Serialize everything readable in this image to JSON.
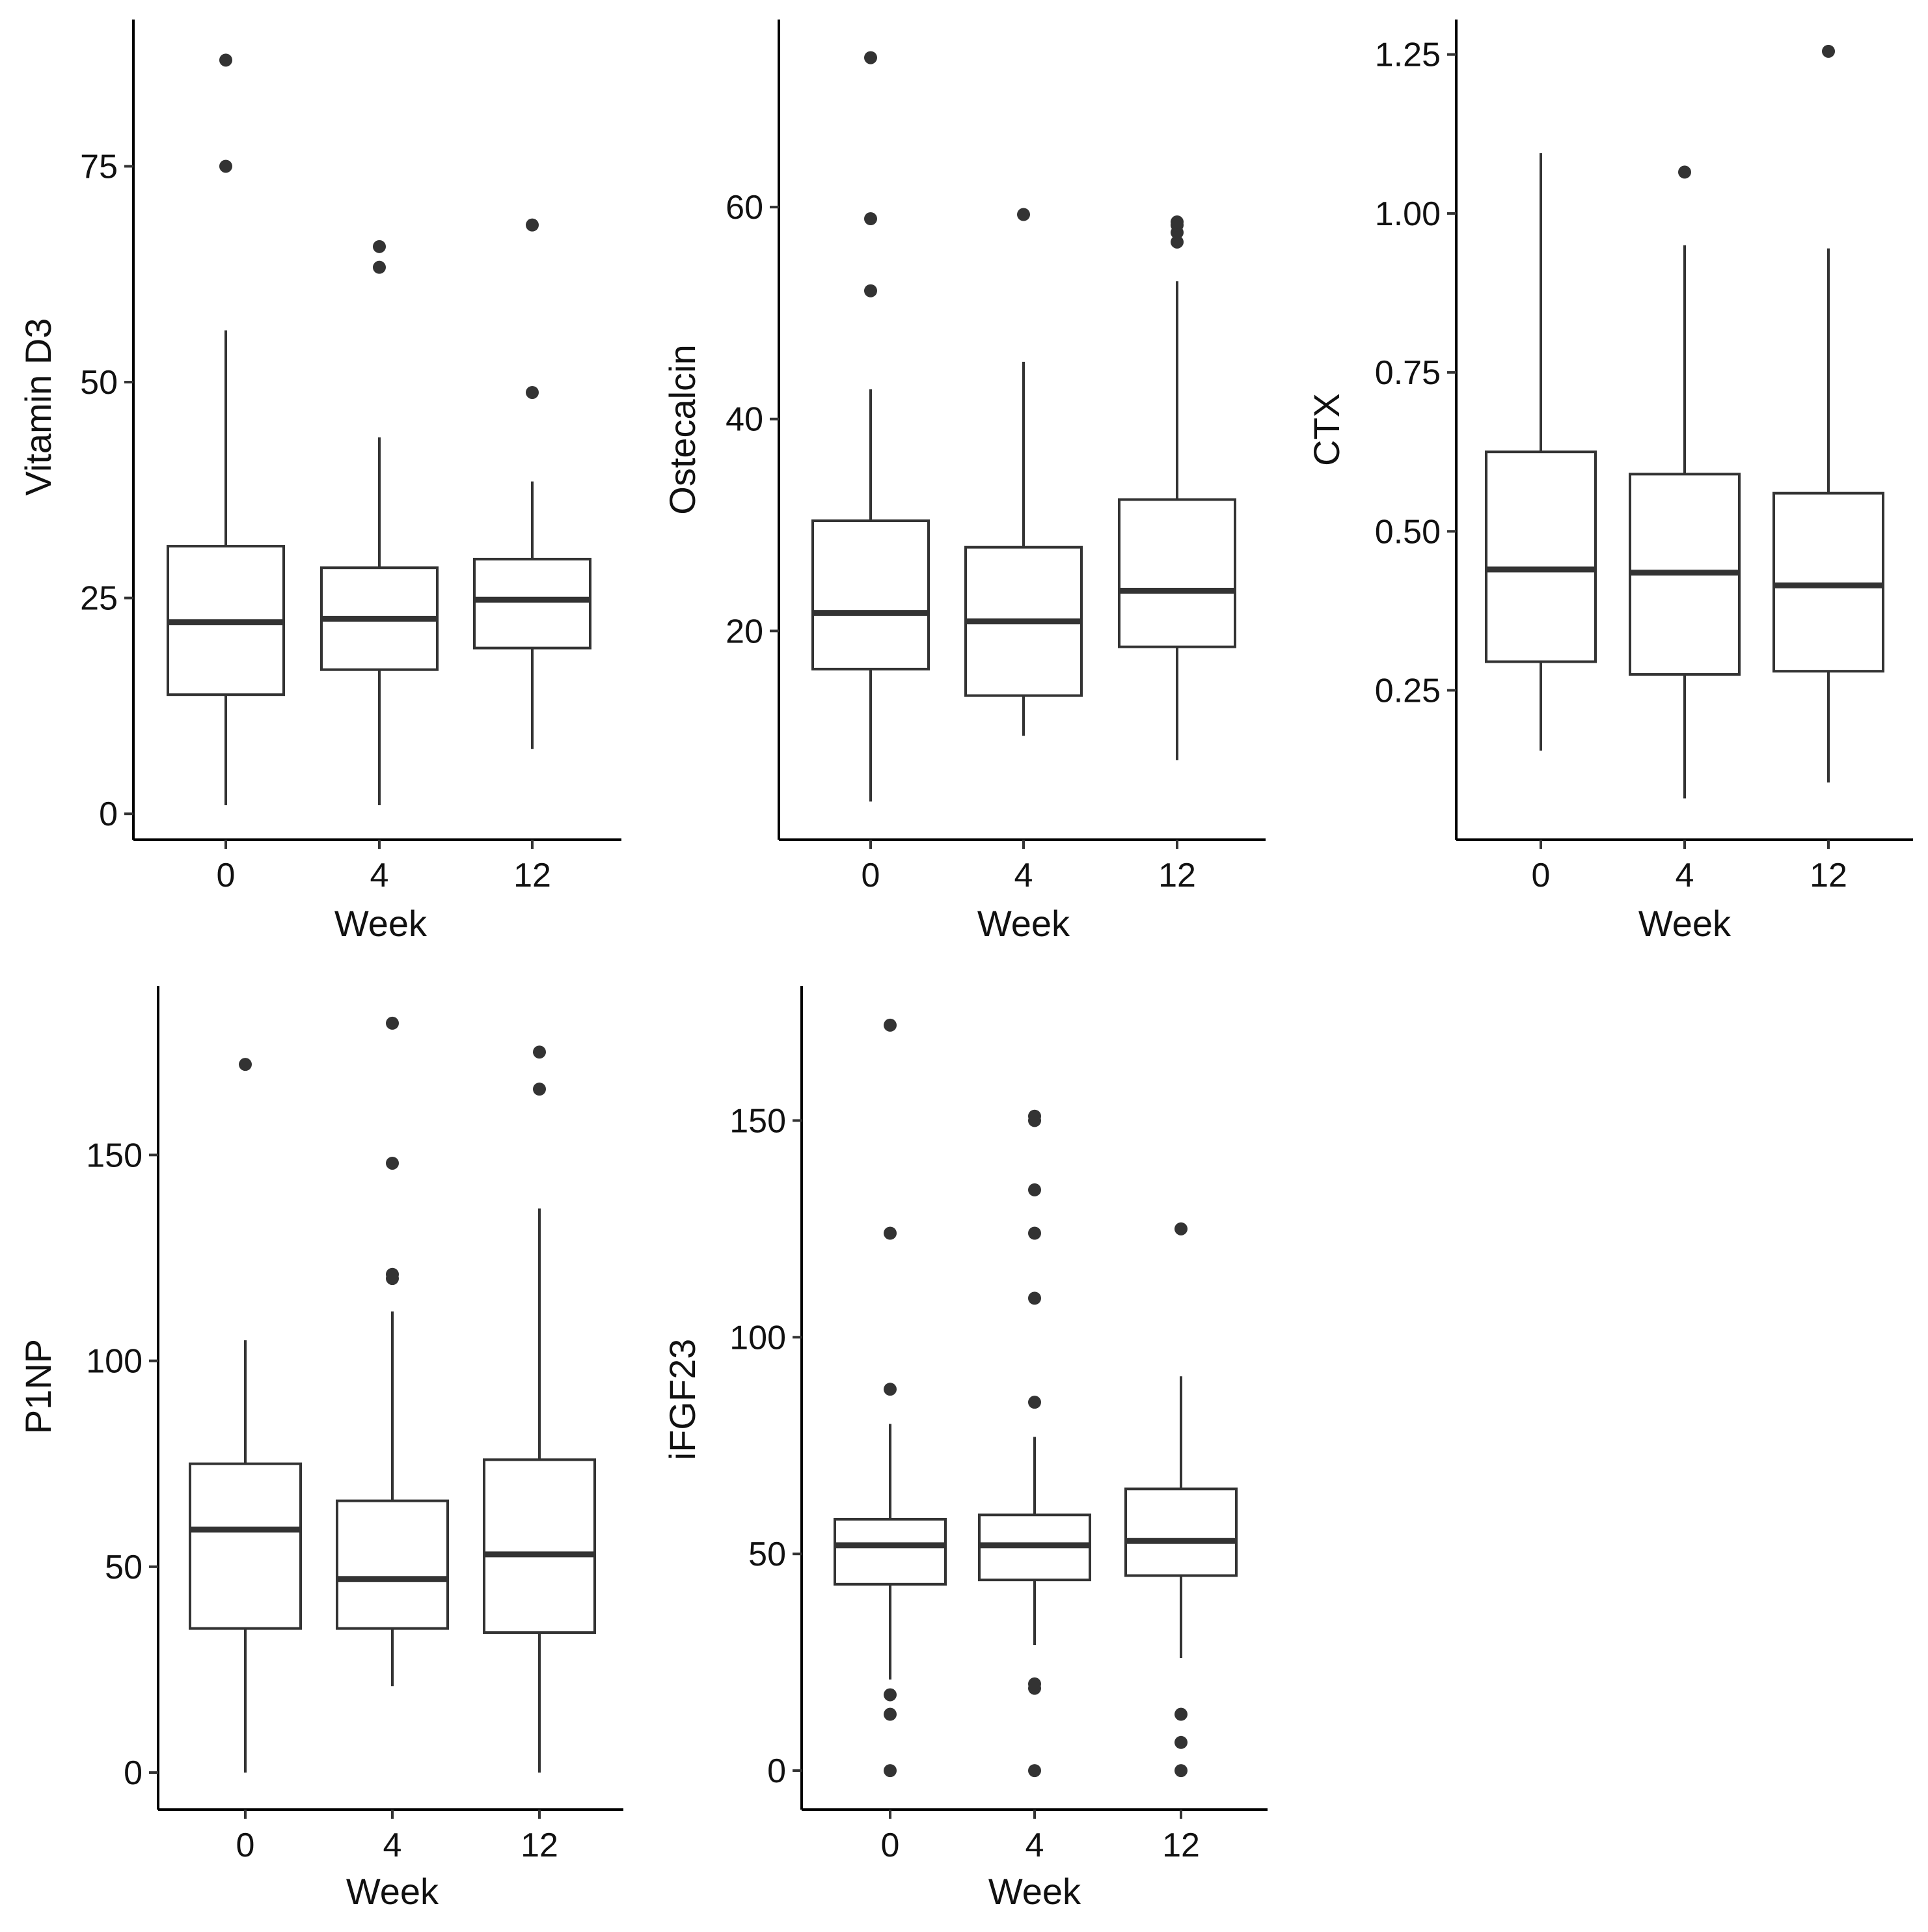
{
  "chart_data": [
    {
      "type": "boxplot",
      "ylabel": "Vitamin D3",
      "xlabel": "Week",
      "categories": [
        "0",
        "4",
        "12"
      ],
      "yticks": [
        "0",
        "25",
        "50",
        "75"
      ],
      "ylim": [
        -3,
        92
      ],
      "boxes": [
        {
          "category": "0",
          "q1": 13.8,
          "median": 22.2,
          "q3": 31.0,
          "whisker_low": 1.0,
          "whisker_high": 56.0,
          "outliers": [
            75.0,
            87.3
          ]
        },
        {
          "category": "4",
          "q1": 16.7,
          "median": 22.6,
          "q3": 28.5,
          "whisker_low": 1.0,
          "whisker_high": 43.6,
          "outliers": [
            63.3,
            65.7
          ]
        },
        {
          "category": "12",
          "q1": 19.2,
          "median": 24.8,
          "q3": 29.5,
          "whisker_low": 7.5,
          "whisker_high": 38.5,
          "outliers": [
            48.8,
            68.2
          ]
        }
      ]
    },
    {
      "type": "boxplot",
      "ylabel": "Ostecalcin",
      "xlabel": "Week",
      "categories": [
        "0",
        "4",
        "12"
      ],
      "yticks": [
        "20",
        "40",
        "60"
      ],
      "ylim": [
        0.3,
        77.7
      ],
      "boxes": [
        {
          "category": "0",
          "q1": 16.4,
          "median": 21.7,
          "q3": 30.4,
          "whisker_low": 3.9,
          "whisker_high": 42.8,
          "outliers": [
            52.1,
            58.9,
            74.1
          ]
        },
        {
          "category": "4",
          "q1": 13.9,
          "median": 20.9,
          "q3": 27.9,
          "whisker_low": 10.1,
          "whisker_high": 45.4,
          "outliers": [
            59.3
          ]
        },
        {
          "category": "12",
          "q1": 18.5,
          "median": 23.8,
          "q3": 32.4,
          "whisker_low": 7.8,
          "whisker_high": 53.0,
          "outliers": [
            56.7,
            57.6,
            58.3,
            58.6
          ]
        }
      ]
    },
    {
      "type": "boxplot",
      "ylabel": "CTX",
      "xlabel": "Week",
      "categories": [
        "0",
        "4",
        "12"
      ],
      "yticks": [
        "0.25",
        "0.50",
        "0.75",
        "1.00",
        "1.25"
      ],
      "ylim": [
        0.015,
        1.305
      ],
      "boxes": [
        {
          "category": "0",
          "q1": 0.295,
          "median": 0.44,
          "q3": 0.625,
          "whisker_low": 0.155,
          "whisker_high": 1.095,
          "outliers": []
        },
        {
          "category": "4",
          "q1": 0.275,
          "median": 0.435,
          "q3": 0.59,
          "whisker_low": 0.08,
          "whisker_high": 0.95,
          "outliers": [
            1.065
          ]
        },
        {
          "category": "12",
          "q1": 0.28,
          "median": 0.415,
          "q3": 0.56,
          "whisker_low": 0.105,
          "whisker_high": 0.945,
          "outliers": [
            1.255
          ]
        }
      ]
    },
    {
      "type": "boxplot",
      "ylabel": "P1NP",
      "xlabel": "Week",
      "categories": [
        "0",
        "4",
        "12"
      ],
      "yticks": [
        "0",
        "50",
        "100",
        "150"
      ],
      "ylim": [
        -9,
        191
      ],
      "boxes": [
        {
          "category": "0",
          "q1": 35.0,
          "median": 59.0,
          "q3": 75.0,
          "whisker_low": 0.0,
          "whisker_high": 105.0,
          "outliers": [
            172.0
          ]
        },
        {
          "category": "4",
          "q1": 35.0,
          "median": 47.0,
          "q3": 66.0,
          "whisker_low": 21.0,
          "whisker_high": 112.0,
          "outliers": [
            120.0,
            121.0,
            148.0,
            182.0
          ]
        },
        {
          "category": "12",
          "q1": 34.0,
          "median": 53.0,
          "q3": 76.0,
          "whisker_low": 0.0,
          "whisker_high": 137.0,
          "outliers": [
            166.0,
            175.0
          ]
        }
      ]
    },
    {
      "type": "boxplot",
      "ylabel": "iFGF23",
      "xlabel": "Week",
      "categories": [
        "0",
        "4",
        "12"
      ],
      "yticks": [
        "0",
        "50",
        "100",
        "150"
      ],
      "ylim": [
        -9,
        181
      ],
      "boxes": [
        {
          "category": "0",
          "q1": 43.0,
          "median": 52.0,
          "q3": 58.0,
          "whisker_low": 21.0,
          "whisker_high": 80.0,
          "outliers": [
            0.0,
            13.0,
            17.5,
            88.0,
            124.0,
            172.0
          ]
        },
        {
          "category": "4",
          "q1": 44.0,
          "median": 52.0,
          "q3": 59.0,
          "whisker_low": 29.0,
          "whisker_high": 77.0,
          "outliers": [
            0.0,
            19.0,
            20.0,
            85.0,
            109.0,
            124.0,
            134.0,
            150.0,
            151.0
          ]
        },
        {
          "category": "12",
          "q1": 45.0,
          "median": 53.0,
          "q3": 65.0,
          "whisker_low": 26.0,
          "whisker_high": 91.0,
          "outliers": [
            0.0,
            6.5,
            13.0,
            125.0
          ]
        }
      ]
    }
  ]
}
